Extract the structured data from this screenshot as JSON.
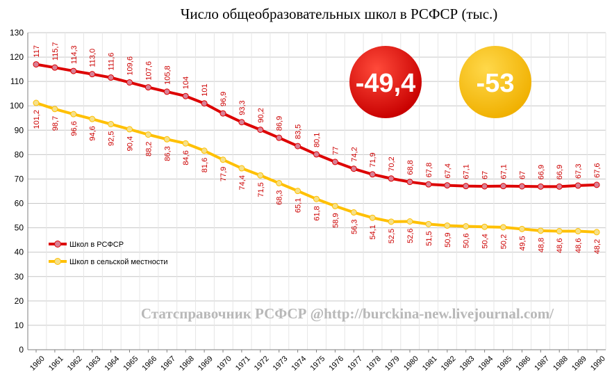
{
  "chart_data": {
    "type": "line",
    "title": "Число общеобразовательных школ в РСФСР (тыс.)",
    "x": [
      "1960",
      "1961",
      "1962",
      "1963",
      "1964",
      "1965",
      "1966",
      "1967",
      "1968",
      "1969",
      "1970",
      "1971",
      "1972",
      "1973",
      "1974",
      "1975",
      "1976",
      "1977",
      "1978",
      "1979",
      "1980",
      "1981",
      "1982",
      "1983",
      "1984",
      "1985",
      "1986",
      "1987",
      "1988",
      "1989",
      "1990"
    ],
    "ylim": [
      0,
      130
    ],
    "yticks": [
      0,
      10,
      20,
      30,
      40,
      50,
      60,
      70,
      80,
      90,
      100,
      110,
      120,
      130
    ],
    "grid": true,
    "legend_position": "bottom-left",
    "series": [
      {
        "name": "Школ в РСФСР",
        "color": "#dd0000",
        "marker_color": "#d98095",
        "values": [
          117,
          115.7,
          114.3,
          113.0,
          111.6,
          109.6,
          107.6,
          105.8,
          104,
          101,
          96.9,
          93.3,
          90.2,
          86.9,
          83.5,
          80.1,
          77,
          74.2,
          71.9,
          70.2,
          68.8,
          67.8,
          67.4,
          67.1,
          67,
          67.1,
          67,
          66.9,
          66.9,
          67.3,
          67.6
        ],
        "labels": [
          "117",
          "115,7",
          "114,3",
          "113,0",
          "111,6",
          "109,6",
          "107,6",
          "105,8",
          "104",
          "101",
          "96,9",
          "93,3",
          "90,2",
          "86,9",
          "83,5",
          "80,1",
          "77",
          "74,2",
          "71,9",
          "70,2",
          "68,8",
          "67,8",
          "67,4",
          "67,1",
          "67",
          "67,1",
          "67",
          "66,9",
          "66,9",
          "67,3",
          "67,6"
        ]
      },
      {
        "name": "Школ в сельской местности",
        "color": "#ffc000",
        "marker_color": "#f5e08a",
        "values": [
          101.2,
          98.7,
          96.6,
          94.6,
          92.5,
          90.4,
          88.2,
          86.3,
          84.6,
          81.6,
          77.9,
          74.4,
          71.5,
          68.3,
          65.1,
          61.8,
          58.9,
          56.3,
          54.1,
          52.5,
          52.6,
          51.5,
          50.9,
          50.6,
          50.4,
          50.2,
          49.5,
          48.8,
          48.6,
          48.6,
          48.2
        ],
        "labels": [
          "101,2",
          "98,7",
          "96,6",
          "94,6",
          "92,5",
          "90,4",
          "88,2",
          "86,3",
          "84,6",
          "81,6",
          "77,9",
          "74,4",
          "71,5",
          "68,3",
          "65,1",
          "61,8",
          "58,9",
          "56,3",
          "54,1",
          "52,5",
          "52,6",
          "51,5",
          "50,9",
          "50,6",
          "50,4",
          "50,2",
          "49,5",
          "48,8",
          "48,6",
          "48,6",
          "48,2"
        ]
      }
    ],
    "annotations": [
      {
        "text": "-49,4",
        "fill": "#dd0000"
      },
      {
        "text": "-53",
        "fill": "#ffc000"
      }
    ],
    "watermark": "Статсправочник РСФСР @http://burckina-new.livejournal.com/",
    "label_color": "#cc0000"
  }
}
